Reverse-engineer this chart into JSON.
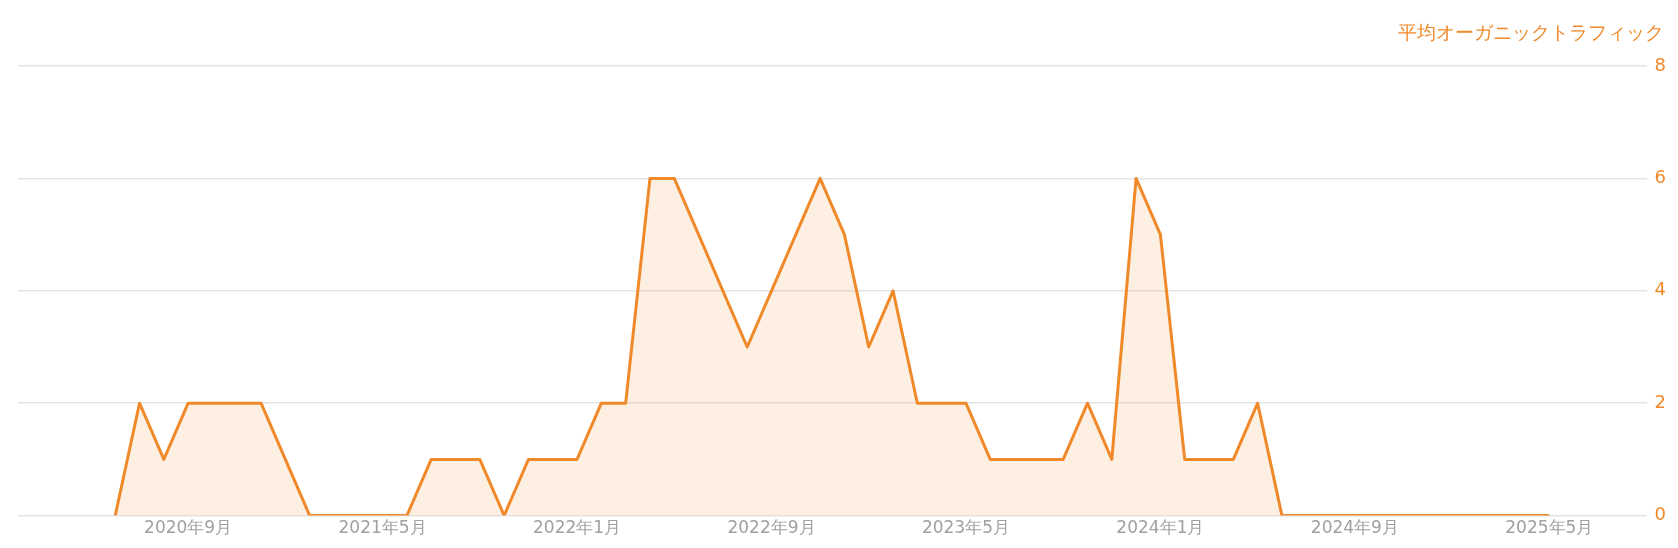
{
  "chart_data": {
    "type": "area",
    "ylabel": "平均オーガニックトラフィック",
    "x": [
      "2020-06",
      "2020-07",
      "2020-08",
      "2020-09",
      "2020-10",
      "2020-11",
      "2020-12",
      "2021-01",
      "2021-02",
      "2021-03",
      "2021-04",
      "2021-05",
      "2021-06",
      "2021-07",
      "2021-08",
      "2021-09",
      "2021-10",
      "2021-11",
      "2021-12",
      "2022-01",
      "2022-02",
      "2022-03",
      "2022-04",
      "2022-05",
      "2022-06",
      "2022-07",
      "2022-08",
      "2022-09",
      "2022-10",
      "2022-11",
      "2022-12",
      "2023-01",
      "2023-02",
      "2023-03",
      "2023-04",
      "2023-05",
      "2023-06",
      "2023-07",
      "2023-08",
      "2023-09",
      "2023-10",
      "2023-11",
      "2023-12",
      "2024-01",
      "2024-02",
      "2024-03",
      "2024-04",
      "2024-05",
      "2024-06",
      "2024-07",
      "2024-08",
      "2024-09",
      "2024-10",
      "2024-11",
      "2024-12",
      "2025-01",
      "2025-02",
      "2025-03",
      "2025-04",
      "2025-05"
    ],
    "series": [
      {
        "color": "#f0892a",
        "values": [
          0,
          2,
          1,
          2,
          2,
          2,
          2,
          1,
          0,
          0,
          0,
          0,
          0,
          1,
          1,
          1,
          0,
          1,
          1,
          1,
          2,
          2,
          6,
          6,
          5,
          4,
          3,
          4,
          5,
          6,
          5,
          3,
          4,
          2,
          2,
          2,
          1,
          1,
          1,
          1,
          2,
          1,
          6,
          5,
          1,
          1,
          1,
          2,
          0,
          0,
          0,
          0,
          0,
          0,
          0,
          0,
          0,
          0,
          0,
          0
        ]
      }
    ],
    "xlim": [
      "2020-02",
      "2025-09"
    ],
    "xticks": [
      {
        "value": "2020-09",
        "label": "2020年9月"
      },
      {
        "value": "2021-05",
        "label": "2021年5月"
      },
      {
        "value": "2022-01",
        "label": "2022年1月"
      },
      {
        "value": "2022-09",
        "label": "2022年9月"
      },
      {
        "value": "2023-05",
        "label": "2023年5月"
      },
      {
        "value": "2024-01",
        "label": "2024年1月"
      },
      {
        "value": "2024-09",
        "label": "2024年9月"
      },
      {
        "value": "2025-05",
        "label": "2025年5月"
      }
    ],
    "ylim": [
      0,
      8
    ],
    "yticks": [
      0,
      2,
      4,
      6,
      8
    ],
    "grid": "y",
    "legend": false,
    "marker": "none",
    "line_style": "solid"
  }
}
